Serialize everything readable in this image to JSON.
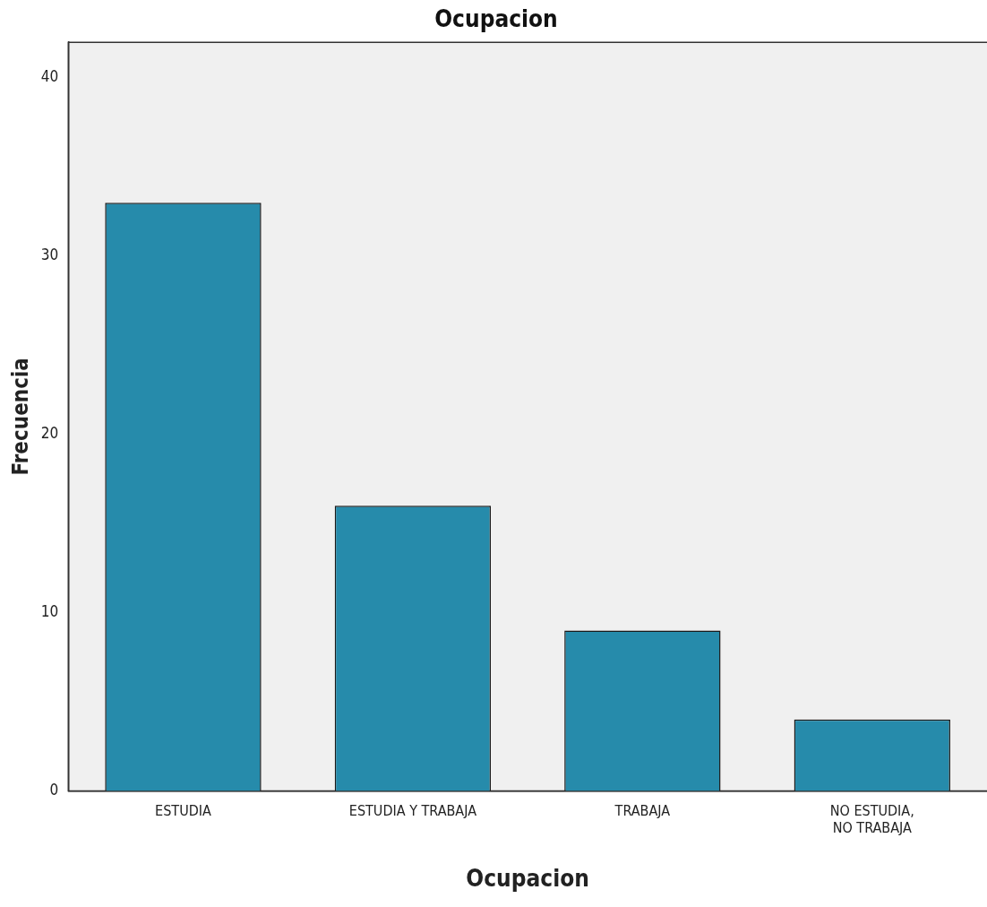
{
  "chart_data": {
    "type": "bar",
    "title": "Ocupacion",
    "xlabel": "Ocupacion",
    "ylabel": "Frecuencia",
    "categories": [
      "ESTUDIA",
      "ESTUDIA Y TRABAJA",
      "TRABAJA",
      "NO ESTUDIA, NO TRABAJA"
    ],
    "values": [
      33,
      16,
      9,
      4
    ],
    "color": "#268bab",
    "ylim": [
      0,
      42
    ],
    "yticks": [
      0,
      10,
      20,
      30,
      40
    ],
    "grid": false,
    "legend": false
  }
}
